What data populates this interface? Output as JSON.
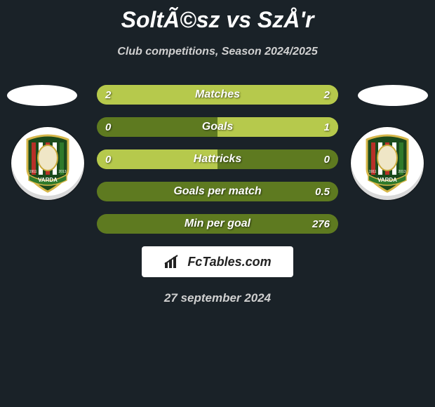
{
  "title": "SoltÃ©sz vs SzÅ'r",
  "subtitle": "Club competitions, Season 2024/2025",
  "date": "27 september 2024",
  "attribution": "FcTables.com",
  "colors": {
    "bg": "#1a2228",
    "bar_bg": "#5e7a20",
    "bar_fill": "#b6c94c",
    "text": "#ffffff"
  },
  "bars": [
    {
      "label": "Matches",
      "left": "2",
      "right": "2",
      "left_pct": 50,
      "right_pct": 50
    },
    {
      "label": "Goals",
      "left": "0",
      "right": "1",
      "left_pct": 0,
      "right_pct": 50
    },
    {
      "label": "Hattricks",
      "left": "0",
      "right": "0",
      "left_pct": 50,
      "right_pct": 0
    },
    {
      "label": "Goals per match",
      "left": "",
      "right": "0.5",
      "left_pct": 0,
      "right_pct": 0
    },
    {
      "label": "Min per goal",
      "left": "",
      "right": "276",
      "left_pct": 0,
      "right_pct": 0
    }
  ],
  "crest": {
    "banner_text": "VARDA",
    "year_left": "1911",
    "year_right": "2013"
  }
}
